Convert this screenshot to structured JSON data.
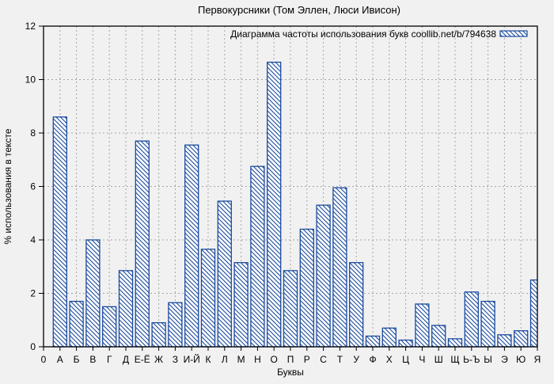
{
  "title": "Первокурсники (Том Эллен, Люси Ивисон)",
  "legend": {
    "label": "Диаграмма частоты использования букв coollib.net/b/794638",
    "swatch": "hatched-bar-swatch"
  },
  "axes": {
    "x_label": "Буквы",
    "y_label": "% использования в тексте",
    "x_origin_label": "0"
  },
  "colors": {
    "bar_stroke": "#1a4a9e",
    "bar_fill": "#ffffff",
    "grid": "#a6a6a6",
    "axis": "#000000",
    "text": "#000000",
    "background": "#f1f1f1"
  },
  "chart_data": {
    "type": "bar",
    "title": "Первокурсники (Том Эллен, Люси Ивисон)",
    "xlabel": "Буквы",
    "ylabel": "% использования в тексте",
    "ylim": [
      0,
      12
    ],
    "yticks": [
      0,
      2,
      4,
      6,
      8,
      10,
      12
    ],
    "ytick_labels": [
      "0",
      "2",
      "4",
      "6",
      "8",
      "10",
      "12"
    ],
    "grid": true,
    "legend_position": "top-right-inside",
    "legend_entry": "Диаграмма частоты использования букв coollib.net/b/794638",
    "bar_style": "diagonal-hatch",
    "categories": [
      "А",
      "Б",
      "В",
      "Г",
      "Д",
      "Е-Ё",
      "Ж",
      "З",
      "И-Й",
      "К",
      "Л",
      "М",
      "Н",
      "О",
      "П",
      "Р",
      "С",
      "Т",
      "У",
      "Ф",
      "Х",
      "Ц",
      "Ч",
      "Ш",
      "Щ",
      "Ь-Ъ",
      "Ы",
      "Э",
      "Ю",
      "Я"
    ],
    "values": [
      8.6,
      1.7,
      4.0,
      1.5,
      2.85,
      7.7,
      0.9,
      1.65,
      7.55,
      3.65,
      5.45,
      3.15,
      6.75,
      10.65,
      2.85,
      4.4,
      5.3,
      5.95,
      3.15,
      0.4,
      0.7,
      0.25,
      1.6,
      0.8,
      0.3,
      2.05,
      1.7,
      0.45,
      0.6,
      2.5
    ]
  }
}
